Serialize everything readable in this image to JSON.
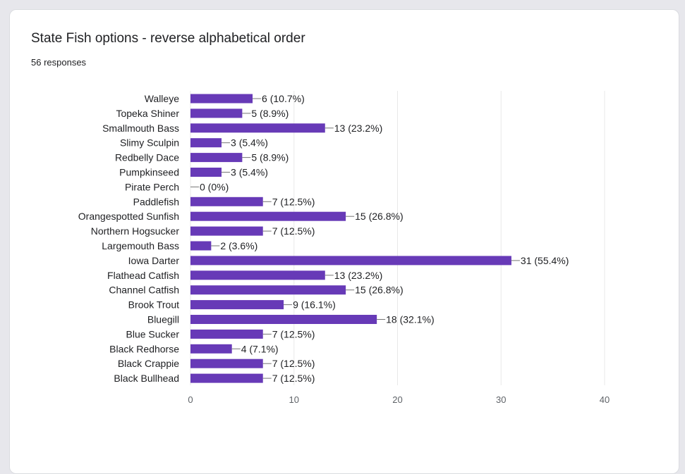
{
  "header": {
    "title": "State Fish options - reverse alphabetical order",
    "responses": "56 responses"
  },
  "colors": {
    "bar": "#673ab7",
    "grid": "#e8e8e8",
    "label": "#202124",
    "tick": "#5f6368",
    "leader": "#757575"
  },
  "chart_data": {
    "type": "bar",
    "orientation": "horizontal",
    "title": "State Fish options - reverse alphabetical order",
    "categories": [
      "Walleye",
      "Topeka Shiner",
      "Smallmouth Bass",
      "Slimy Sculpin",
      "Redbelly Dace",
      "Pumpkinseed",
      "Pirate Perch",
      "Paddlefish",
      "Orangespotted Sunfish",
      "Northern Hogsucker",
      "Largemouth Bass",
      "Iowa Darter",
      "Flathead Catfish",
      "Channel Catfish",
      "Brook Trout",
      "Bluegill",
      "Blue Sucker",
      "Black Redhorse",
      "Black Crappie",
      "Black Bullhead"
    ],
    "values": [
      6,
      5,
      13,
      3,
      5,
      3,
      0,
      7,
      15,
      7,
      2,
      31,
      13,
      15,
      9,
      18,
      7,
      4,
      7,
      7
    ],
    "data_labels": [
      "6 (10.7%)",
      "5 (8.9%)",
      "13 (23.2%)",
      "3 (5.4%)",
      "5 (8.9%)",
      "3 (5.4%)",
      "0 (0%)",
      "7 (12.5%)",
      "15 (26.8%)",
      "7 (12.5%)",
      "2 (3.6%)",
      "31 (55.4%)",
      "13 (23.2%)",
      "15 (26.8%)",
      "9 (16.1%)",
      "18 (32.1%)",
      "7 (12.5%)",
      "4 (7.1%)",
      "7 (12.5%)",
      "7 (12.5%)"
    ],
    "xlim": [
      0,
      40
    ],
    "xticks": [
      0,
      10,
      20,
      30,
      40
    ],
    "xlabel": "",
    "ylabel": "",
    "grid": true,
    "legend": "none"
  }
}
